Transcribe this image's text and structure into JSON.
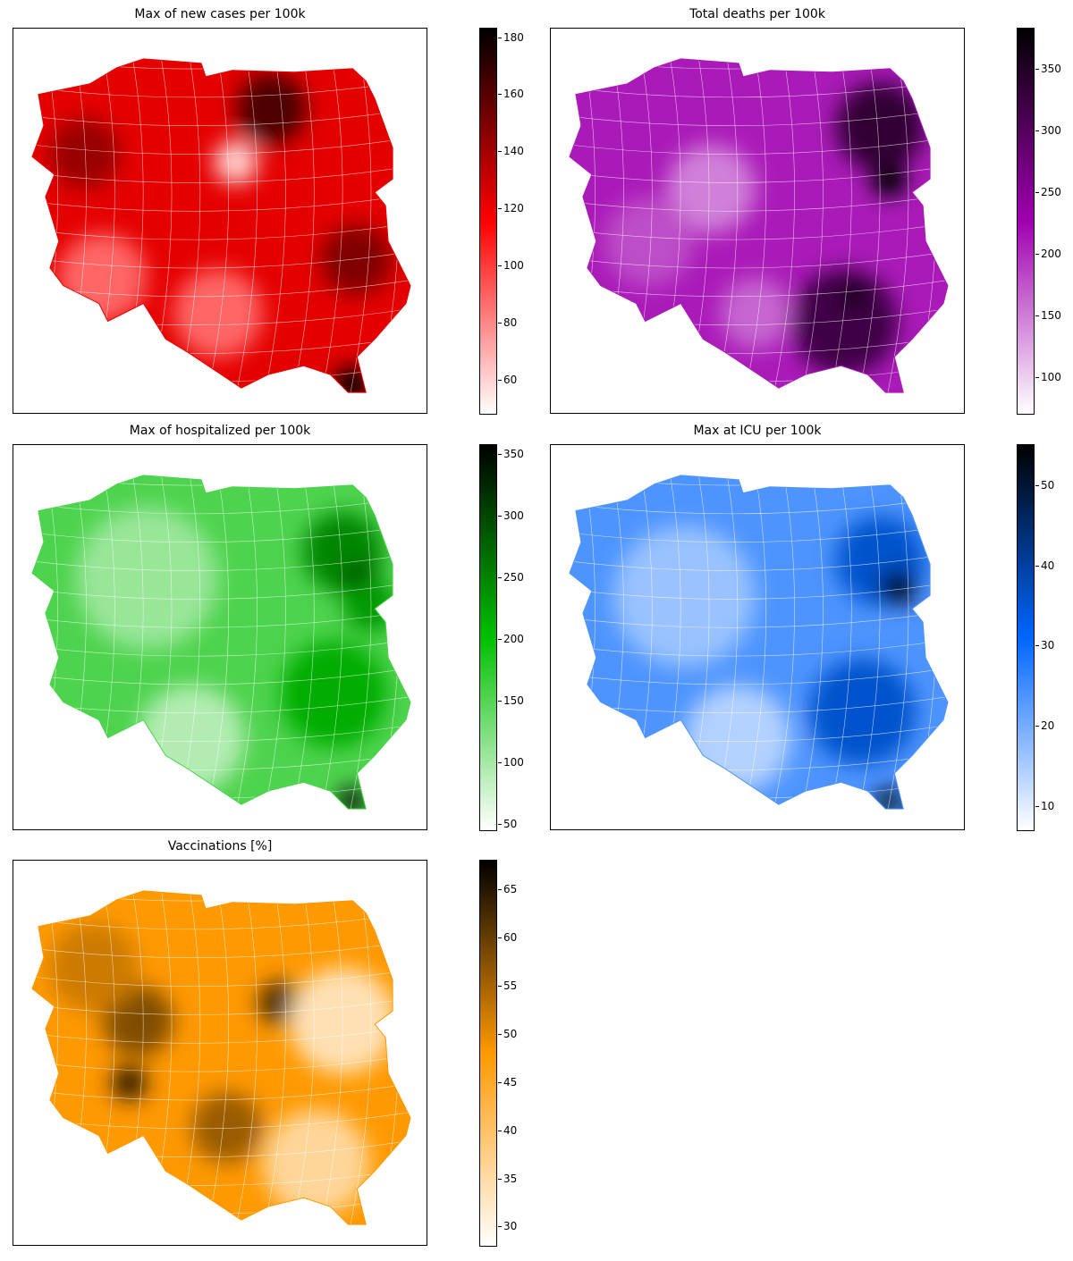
{
  "panels": [
    {
      "title": "Max of new cases per 100k",
      "cmap": [
        "#ffffff",
        "#ff0000",
        "#000000"
      ],
      "range": [
        48,
        183
      ],
      "ticks": [
        60,
        80,
        100,
        120,
        140,
        160,
        180
      ],
      "base_level": 0.55
    },
    {
      "title": "Total deaths per 100k",
      "cmap": [
        "#ffffff",
        "#a000b0",
        "#000000"
      ],
      "range": [
        70,
        383
      ],
      "ticks": [
        100,
        150,
        200,
        250,
        300,
        350
      ],
      "base_level": 0.45
    },
    {
      "title": "Max of hospitalized per 100k",
      "cmap": [
        "#ffffff",
        "#00c000",
        "#000000"
      ],
      "range": [
        45,
        357
      ],
      "ticks": [
        50,
        100,
        150,
        200,
        250,
        300,
        350
      ],
      "base_level": 0.35
    },
    {
      "title": "Max at ICU per 100k",
      "cmap": [
        "#ffffff",
        "#0066ff",
        "#000000"
      ],
      "range": [
        7,
        55
      ],
      "ticks": [
        10,
        20,
        30,
        40,
        50
      ],
      "base_level": 0.35
    },
    {
      "title": "Vaccinations [%]",
      "cmap": [
        "#ffffff",
        "#ff9900",
        "#000000"
      ],
      "range": [
        28,
        68
      ],
      "ticks": [
        30,
        35,
        40,
        45,
        50,
        55,
        60,
        65
      ],
      "base_level": 0.5
    }
  ]
}
